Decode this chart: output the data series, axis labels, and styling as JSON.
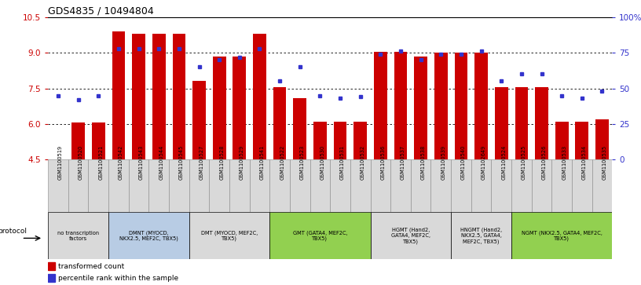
{
  "title": "GDS4835 / 10494804",
  "samples": [
    "GSM1100519",
    "GSM1100520",
    "GSM1100521",
    "GSM1100542",
    "GSM1100543",
    "GSM1100544",
    "GSM1100545",
    "GSM1100527",
    "GSM1100528",
    "GSM1100529",
    "GSM1100541",
    "GSM1100522",
    "GSM1100523",
    "GSM1100530",
    "GSM1100531",
    "GSM1100532",
    "GSM1100536",
    "GSM1100537",
    "GSM1100538",
    "GSM1100539",
    "GSM1100540",
    "GSM1102649",
    "GSM1100524",
    "GSM1100525",
    "GSM1100526",
    "GSM1100533",
    "GSM1100534",
    "GSM1100535"
  ],
  "bar_values": [
    4.5,
    6.05,
    6.05,
    9.9,
    9.8,
    9.8,
    9.8,
    7.8,
    8.85,
    8.85,
    9.8,
    7.55,
    7.1,
    6.1,
    6.1,
    6.1,
    9.05,
    9.05,
    8.85,
    9.0,
    9.0,
    9.0,
    7.55,
    7.55,
    7.55,
    6.1,
    6.1,
    6.2
  ],
  "percentile_values": [
    45,
    42,
    45,
    78,
    78,
    78,
    78,
    65,
    70,
    72,
    78,
    55,
    65,
    45,
    43,
    44,
    74,
    76,
    70,
    74,
    74,
    76,
    55,
    60,
    60,
    45,
    43,
    48
  ],
  "ylim_left": [
    4.5,
    10.5
  ],
  "yticks_left": [
    4.5,
    6.0,
    7.5,
    9.0,
    10.5
  ],
  "ylim_right": [
    0,
    100
  ],
  "yticks_right": [
    0,
    25,
    50,
    75,
    100
  ],
  "right_ytick_labels": [
    "0",
    "25",
    "50",
    "75",
    "100%"
  ],
  "bar_color": "#cc0000",
  "percentile_color": "#3333cc",
  "groups": [
    {
      "label": "no transcription\nfactors",
      "start": 0,
      "end": 3,
      "color": "#d9d9d9"
    },
    {
      "label": "DMNT (MYOCD,\nNKX2.5, MEF2C, TBX5)",
      "start": 3,
      "end": 7,
      "color": "#b8cce4"
    },
    {
      "label": "DMT (MYOCD, MEF2C,\nTBX5)",
      "start": 7,
      "end": 11,
      "color": "#d9d9d9"
    },
    {
      "label": "GMT (GATA4, MEF2C,\nTBX5)",
      "start": 11,
      "end": 16,
      "color": "#92d050"
    },
    {
      "label": "HGMT (Hand2,\nGATA4, MEF2C,\nTBX5)",
      "start": 16,
      "end": 20,
      "color": "#d9d9d9"
    },
    {
      "label": "HNGMT (Hand2,\nNKX2.5, GATA4,\nMEF2C, TBX5)",
      "start": 20,
      "end": 23,
      "color": "#d9d9d9"
    },
    {
      "label": "NGMT (NKX2.5, GATA4, MEF2C,\nTBX5)",
      "start": 23,
      "end": 28,
      "color": "#92d050"
    }
  ],
  "legend_bar_label": "transformed count",
  "legend_percentile_label": "percentile rank within the sample",
  "protocol_label": "protocol"
}
